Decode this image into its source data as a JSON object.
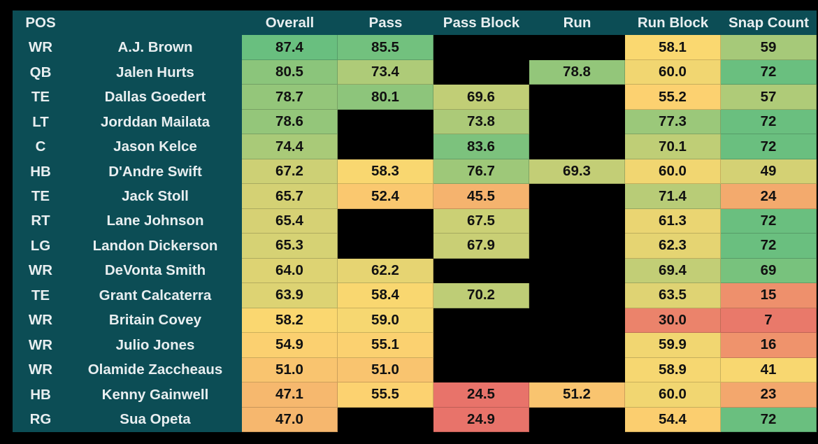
{
  "chart_data": {
    "type": "table",
    "headers": [
      "POS",
      "",
      "Overall",
      "Pass",
      "Pass Block",
      "Run",
      "Run Block",
      "Snap Count"
    ],
    "rows": [
      {
        "pos": "WR",
        "name": "A.J. Brown",
        "values": [
          "87.4",
          "85.5",
          null,
          null,
          "58.1",
          "59"
        ]
      },
      {
        "pos": "QB",
        "name": "Jalen Hurts",
        "values": [
          "80.5",
          "73.4",
          null,
          "78.8",
          "60.0",
          "72"
        ]
      },
      {
        "pos": "TE",
        "name": "Dallas Goedert",
        "values": [
          "78.7",
          "80.1",
          "69.6",
          null,
          "55.2",
          "57"
        ]
      },
      {
        "pos": "LT",
        "name": "Jorddan Mailata",
        "values": [
          "78.6",
          null,
          "73.8",
          null,
          "77.3",
          "72"
        ]
      },
      {
        "pos": "C",
        "name": "Jason Kelce",
        "values": [
          "74.4",
          null,
          "83.6",
          null,
          "70.1",
          "72"
        ]
      },
      {
        "pos": "HB",
        "name": "D'Andre Swift",
        "values": [
          "67.2",
          "58.3",
          "76.7",
          "69.3",
          "60.0",
          "49"
        ]
      },
      {
        "pos": "TE",
        "name": "Jack Stoll",
        "values": [
          "65.7",
          "52.4",
          "45.5",
          null,
          "71.4",
          "24"
        ]
      },
      {
        "pos": "RT",
        "name": "Lane Johnson",
        "values": [
          "65.4",
          null,
          "67.5",
          null,
          "61.3",
          "72"
        ]
      },
      {
        "pos": "LG",
        "name": "Landon Dickerson",
        "values": [
          "65.3",
          null,
          "67.9",
          null,
          "62.3",
          "72"
        ]
      },
      {
        "pos": "WR",
        "name": "DeVonta Smith",
        "values": [
          "64.0",
          "62.2",
          null,
          null,
          "69.4",
          "69"
        ]
      },
      {
        "pos": "TE",
        "name": "Grant Calcaterra",
        "values": [
          "63.9",
          "58.4",
          "70.2",
          null,
          "63.5",
          "15"
        ]
      },
      {
        "pos": "WR",
        "name": "Britain Covey",
        "values": [
          "58.2",
          "59.0",
          null,
          null,
          "30.0",
          "7"
        ]
      },
      {
        "pos": "WR",
        "name": "Julio Jones",
        "values": [
          "54.9",
          "55.1",
          null,
          null,
          "59.9",
          "16"
        ]
      },
      {
        "pos": "WR",
        "name": "Olamide Zaccheaus",
        "values": [
          "51.0",
          "51.0",
          null,
          null,
          "58.9",
          "41"
        ]
      },
      {
        "pos": "HB",
        "name": "Kenny Gainwell",
        "values": [
          "47.1",
          "55.5",
          "24.5",
          "51.2",
          "60.0",
          "23"
        ]
      },
      {
        "pos": "RG",
        "name": "Sua Opeta",
        "values": [
          "47.0",
          null,
          "24.9",
          null,
          "54.4",
          "72"
        ]
      }
    ],
    "color_scale": {
      "low": "#e8736a",
      "mid": "#fdd870",
      "high": "#5cbd80"
    },
    "grade_range": [
      25,
      90
    ],
    "snap_range": [
      5,
      75
    ]
  }
}
